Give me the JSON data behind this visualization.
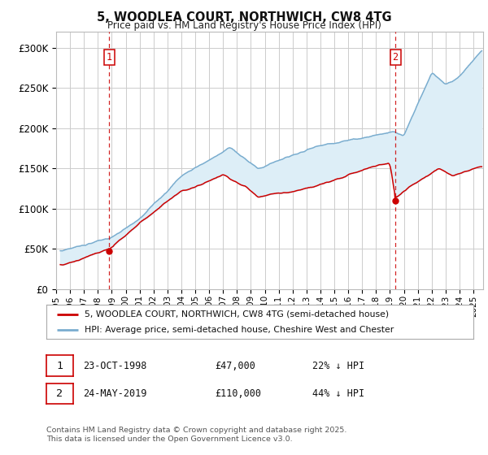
{
  "title": "5, WOODLEA COURT, NORTHWICH, CW8 4TG",
  "subtitle": "Price paid vs. HM Land Registry's House Price Index (HPI)",
  "legend_line1": "5, WOODLEA COURT, NORTHWICH, CW8 4TG (semi-detached house)",
  "legend_line2": "HPI: Average price, semi-detached house, Cheshire West and Chester",
  "footer": "Contains HM Land Registry data © Crown copyright and database right 2025.\nThis data is licensed under the Open Government Licence v3.0.",
  "sale1_text": "23-OCT-1998",
  "sale1_price_text": "£47,000",
  "sale1_hpi_text": "22% ↓ HPI",
  "sale2_text": "24-MAY-2019",
  "sale2_price_text": "£110,000",
  "sale2_hpi_text": "44% ↓ HPI",
  "red_color": "#cc0000",
  "blue_color": "#7aadcf",
  "fill_color": "#ddeef7",
  "background_color": "#ffffff",
  "grid_color": "#cccccc",
  "ylim": [
    0,
    320000
  ],
  "yticks": [
    0,
    50000,
    100000,
    150000,
    200000,
    250000,
    300000
  ],
  "xlim_start": 1995.3,
  "xlim_end": 2025.7,
  "xtick_years": [
    1995,
    1996,
    1997,
    1998,
    1999,
    2000,
    2001,
    2002,
    2003,
    2004,
    2005,
    2006,
    2007,
    2008,
    2009,
    2010,
    2011,
    2012,
    2013,
    2014,
    2015,
    2016,
    2017,
    2018,
    2019,
    2020,
    2021,
    2022,
    2023,
    2024,
    2025
  ],
  "sale1_x": 1998.82,
  "sale2_x": 2019.39,
  "sale1_price": 47000,
  "sale2_price": 110000
}
